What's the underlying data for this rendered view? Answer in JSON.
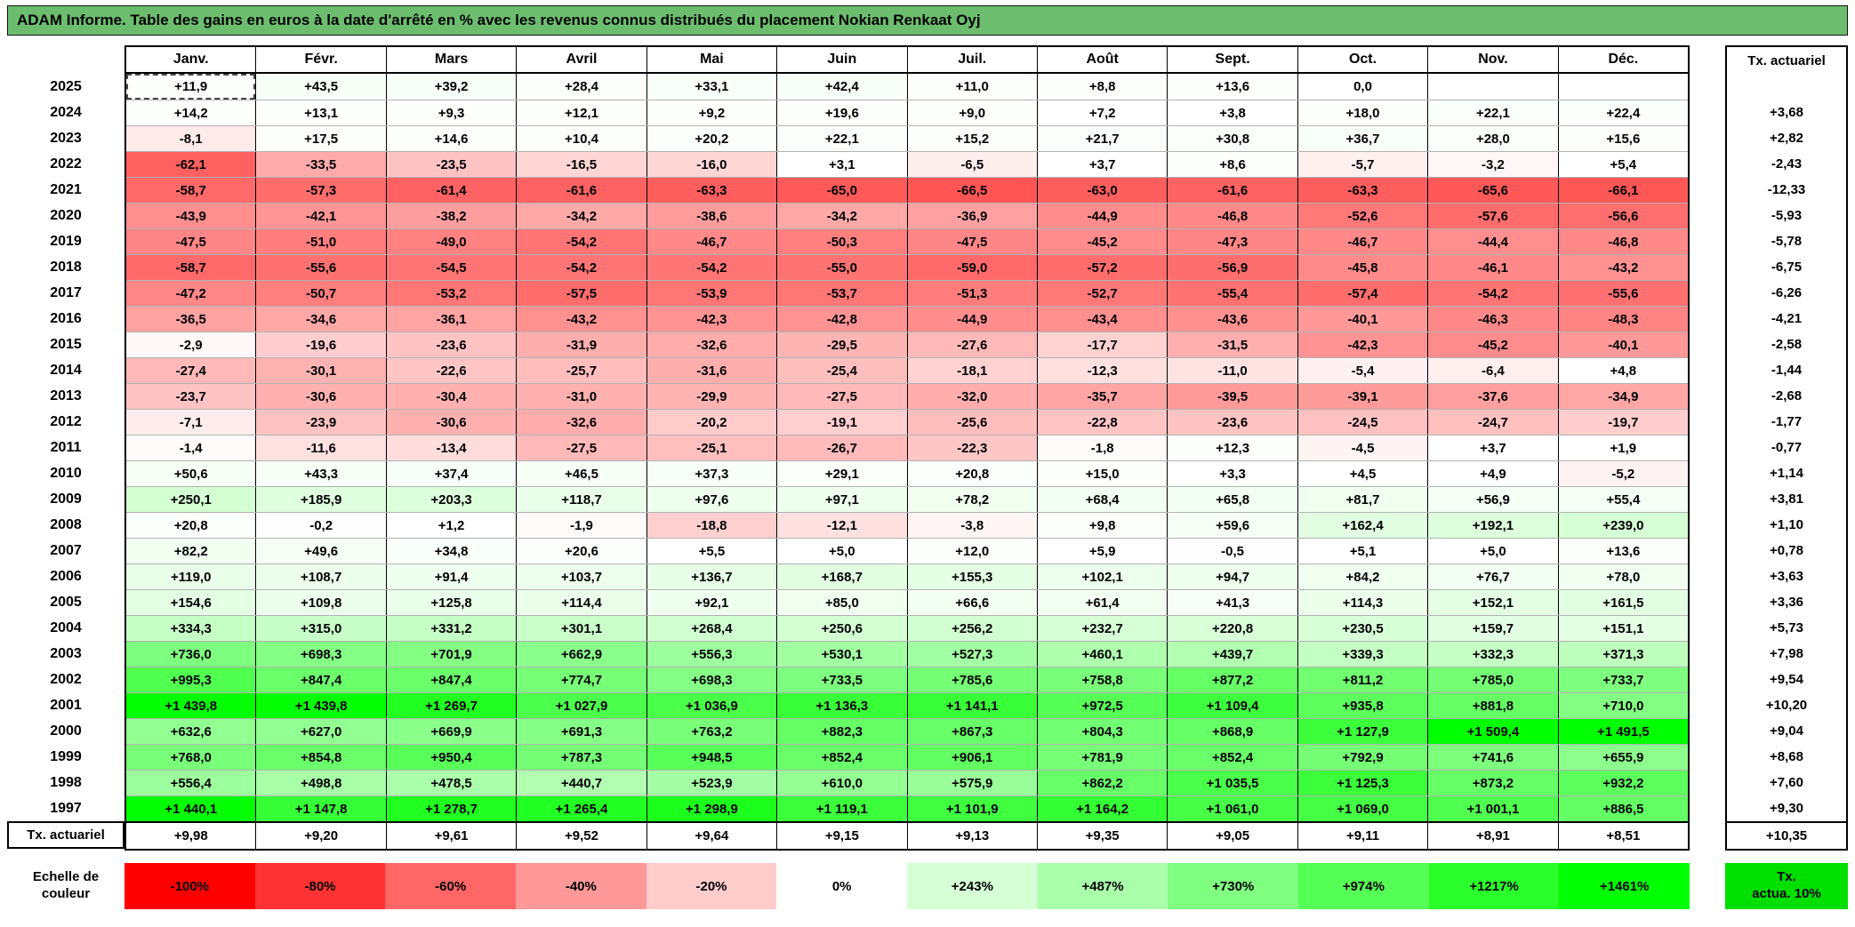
{
  "colors": {
    "title_bg": "#6CBE6E"
  },
  "selection": {
    "year": "2025",
    "month_index": 0
  },
  "chart_data": {
    "type": "heatmap",
    "title": "ADAM Informe. Table des gains en euros à la date d'arrêté en % avec les revenus connus distribués du placement Nokian Renkaat Oyj",
    "columns": [
      "Janv.",
      "Févr.",
      "Mars",
      "Avril",
      "Mai",
      "Juin",
      "Juil.",
      "Août",
      "Sept.",
      "Oct.",
      "Nov.",
      "Déc."
    ],
    "actuarial_header": "Tx. actuariel",
    "value_unit": "%",
    "rows": [
      {
        "year": "2025",
        "cells": [
          11.9,
          43.5,
          39.2,
          28.4,
          33.1,
          42.4,
          11.0,
          8.8,
          13.6,
          0.0,
          null,
          null
        ],
        "actuarial": null
      },
      {
        "year": "2024",
        "cells": [
          14.2,
          13.1,
          9.3,
          12.1,
          9.2,
          19.6,
          9.0,
          7.2,
          3.8,
          18.0,
          22.1,
          22.4
        ],
        "actuarial": 3.68
      },
      {
        "year": "2023",
        "cells": [
          -8.1,
          17.5,
          14.6,
          10.4,
          20.2,
          22.1,
          15.2,
          21.7,
          30.8,
          36.7,
          28.0,
          15.6
        ],
        "actuarial": 2.82
      },
      {
        "year": "2022",
        "cells": [
          -62.1,
          -33.5,
          -23.5,
          -16.5,
          -16.0,
          3.1,
          -6.5,
          3.7,
          8.6,
          -5.7,
          -3.2,
          5.4
        ],
        "actuarial": -2.43
      },
      {
        "year": "2021",
        "cells": [
          -58.7,
          -57.3,
          -61.4,
          -61.6,
          -63.3,
          -65.0,
          -66.5,
          -63.0,
          -61.6,
          -63.3,
          -65.6,
          -66.1
        ],
        "actuarial": -12.33
      },
      {
        "year": "2020",
        "cells": [
          -43.9,
          -42.1,
          -38.2,
          -34.2,
          -38.6,
          -34.2,
          -36.9,
          -44.9,
          -46.8,
          -52.6,
          -57.6,
          -56.6
        ],
        "actuarial": -5.93
      },
      {
        "year": "2019",
        "cells": [
          -47.5,
          -51.0,
          -49.0,
          -54.2,
          -46.7,
          -50.3,
          -47.5,
          -45.2,
          -47.3,
          -46.7,
          -44.4,
          -46.8
        ],
        "actuarial": -5.78
      },
      {
        "year": "2018",
        "cells": [
          -58.7,
          -55.6,
          -54.5,
          -54.2,
          -54.2,
          -55.0,
          -59.0,
          -57.2,
          -56.9,
          -45.8,
          -46.1,
          -43.2
        ],
        "actuarial": -6.75
      },
      {
        "year": "2017",
        "cells": [
          -47.2,
          -50.7,
          -53.2,
          -57.5,
          -53.9,
          -53.7,
          -51.3,
          -52.7,
          -55.4,
          -57.4,
          -54.2,
          -55.6
        ],
        "actuarial": -6.26
      },
      {
        "year": "2016",
        "cells": [
          -36.5,
          -34.6,
          -36.1,
          -43.2,
          -42.3,
          -42.8,
          -44.9,
          -43.4,
          -43.6,
          -40.1,
          -46.3,
          -48.3
        ],
        "actuarial": -4.21
      },
      {
        "year": "2015",
        "cells": [
          -2.9,
          -19.6,
          -23.6,
          -31.9,
          -32.6,
          -29.5,
          -27.6,
          -17.7,
          -31.5,
          -42.3,
          -45.2,
          -40.1
        ],
        "actuarial": -2.58
      },
      {
        "year": "2014",
        "cells": [
          -27.4,
          -30.1,
          -22.6,
          -25.7,
          -31.6,
          -25.4,
          -18.1,
          -12.3,
          -11.0,
          -5.4,
          -6.4,
          4.8
        ],
        "actuarial": -1.44
      },
      {
        "year": "2013",
        "cells": [
          -23.7,
          -30.6,
          -30.4,
          -31.0,
          -29.9,
          -27.5,
          -32.0,
          -35.7,
          -39.5,
          -39.1,
          -37.6,
          -34.9
        ],
        "actuarial": -2.68
      },
      {
        "year": "2012",
        "cells": [
          -7.1,
          -23.9,
          -30.6,
          -32.6,
          -20.2,
          -19.1,
          -25.6,
          -22.8,
          -23.6,
          -24.5,
          -24.7,
          -19.7
        ],
        "actuarial": -1.77
      },
      {
        "year": "2011",
        "cells": [
          -1.4,
          -11.6,
          -13.4,
          -27.5,
          -25.1,
          -26.7,
          -22.3,
          -1.8,
          12.3,
          -4.5,
          3.7,
          1.9
        ],
        "actuarial": -0.77
      },
      {
        "year": "2010",
        "cells": [
          50.6,
          43.3,
          37.4,
          46.5,
          37.3,
          29.1,
          20.8,
          15.0,
          3.3,
          4.5,
          4.9,
          -5.2
        ],
        "actuarial": 1.14
      },
      {
        "year": "2009",
        "cells": [
          250.1,
          185.9,
          203.3,
          118.7,
          97.6,
          97.1,
          78.2,
          68.4,
          65.8,
          81.7,
          56.9,
          55.4
        ],
        "actuarial": 3.81
      },
      {
        "year": "2008",
        "cells": [
          20.8,
          -0.2,
          1.2,
          -1.9,
          -18.8,
          -12.1,
          -3.8,
          9.8,
          59.6,
          162.4,
          192.1,
          239.0
        ],
        "actuarial": 1.1
      },
      {
        "year": "2007",
        "cells": [
          82.2,
          49.6,
          34.8,
          20.6,
          5.5,
          5.0,
          12.0,
          5.9,
          -0.5,
          5.1,
          5.0,
          13.6
        ],
        "actuarial": 0.78
      },
      {
        "year": "2006",
        "cells": [
          119.0,
          108.7,
          91.4,
          103.7,
          136.7,
          168.7,
          155.3,
          102.1,
          94.7,
          84.2,
          76.7,
          78.0
        ],
        "actuarial": 3.63
      },
      {
        "year": "2005",
        "cells": [
          154.6,
          109.8,
          125.8,
          114.4,
          92.1,
          85.0,
          66.6,
          61.4,
          41.3,
          114.3,
          152.1,
          161.5
        ],
        "actuarial": 3.36
      },
      {
        "year": "2004",
        "cells": [
          334.3,
          315.0,
          331.2,
          301.1,
          268.4,
          250.6,
          256.2,
          232.7,
          220.8,
          230.5,
          159.7,
          151.1
        ],
        "actuarial": 5.73
      },
      {
        "year": "2003",
        "cells": [
          736.0,
          698.3,
          701.9,
          662.9,
          556.3,
          530.1,
          527.3,
          460.1,
          439.7,
          339.3,
          332.3,
          371.3
        ],
        "actuarial": 7.98
      },
      {
        "year": "2002",
        "cells": [
          995.3,
          847.4,
          847.4,
          774.7,
          698.3,
          733.5,
          785.6,
          758.8,
          877.2,
          811.2,
          785.0,
          733.7
        ],
        "actuarial": 9.54
      },
      {
        "year": "2001",
        "cells": [
          1439.8,
          1439.8,
          1269.7,
          1027.9,
          1036.9,
          1136.3,
          1141.1,
          972.5,
          1109.4,
          935.8,
          881.8,
          710.0
        ],
        "actuarial": 10.2
      },
      {
        "year": "2000",
        "cells": [
          632.6,
          627.0,
          669.9,
          691.3,
          763.2,
          882.3,
          867.3,
          804.3,
          868.9,
          1127.9,
          1509.4,
          1491.5
        ],
        "actuarial": 9.04
      },
      {
        "year": "1999",
        "cells": [
          768.0,
          854.8,
          950.4,
          787.3,
          948.5,
          852.4,
          906.1,
          781.9,
          852.4,
          792.9,
          741.6,
          655.9
        ],
        "actuarial": 8.68
      },
      {
        "year": "1998",
        "cells": [
          556.4,
          498.8,
          478.5,
          440.7,
          523.9,
          610.0,
          575.9,
          862.2,
          1035.5,
          1125.3,
          873.2,
          932.2
        ],
        "actuarial": 7.6
      },
      {
        "year": "1997",
        "cells": [
          1440.1,
          1147.8,
          1278.7,
          1265.4,
          1298.9,
          1119.1,
          1101.9,
          1164.2,
          1061.0,
          1069.0,
          1001.1,
          886.5
        ],
        "actuarial": 9.3
      }
    ],
    "footer": {
      "label": "Tx. actuariel",
      "cells": [
        9.98,
        9.2,
        9.61,
        9.52,
        9.64,
        9.15,
        9.13,
        9.35,
        9.05,
        9.11,
        8.91,
        8.51
      ],
      "actuarial": 10.35
    },
    "color_scale": {
      "min": -100,
      "max": 1461,
      "negative_color": "#FF0000",
      "zero_color": "#FFFFFF",
      "positive_color": "#00FF00"
    },
    "legend": {
      "label": "Echelle de\ncouleur",
      "stops": [
        {
          "label": "-100%",
          "value": -100
        },
        {
          "label": "-80%",
          "value": -80
        },
        {
          "label": "-60%",
          "value": -60
        },
        {
          "label": "-40%",
          "value": -40
        },
        {
          "label": "-20%",
          "value": -20
        },
        {
          "label": "0%",
          "value": 0
        },
        {
          "label": "+243%",
          "value": 243
        },
        {
          "label": "+487%",
          "value": 487
        },
        {
          "label": "+730%",
          "value": 730
        },
        {
          "label": "+974%",
          "value": 974
        },
        {
          "label": "+1217%",
          "value": 1217
        },
        {
          "label": "+1461%",
          "value": 1461
        }
      ],
      "actua_box_label": "Tx.\nactua. 10%",
      "actua_box_color": "#00DF00"
    }
  }
}
